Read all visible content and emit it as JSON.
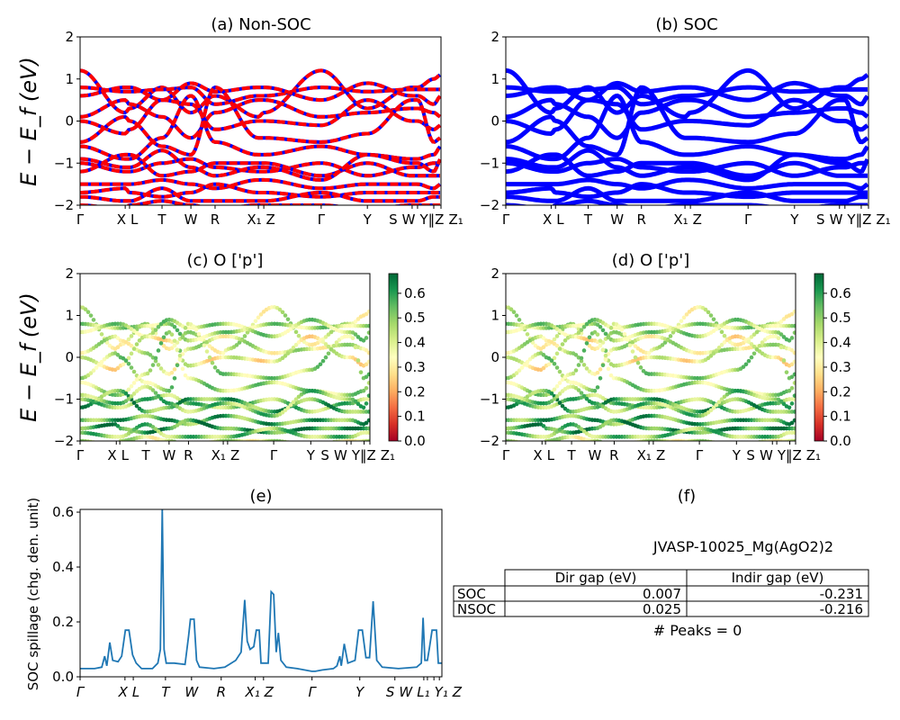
{
  "chart_data": [
    {
      "type": "line",
      "title": "(a) Non-SOC",
      "ylabel": "E − E_f (eV)",
      "ylim": [
        -2,
        2
      ],
      "yticks": [
        "−2",
        "−1",
        "0",
        "1",
        "2"
      ],
      "xtick_labels": [
        "Γ",
        "X",
        "L",
        "T",
        "W",
        "R",
        "X₁",
        "Z",
        "Γ",
        "Y",
        "S",
        "W",
        "Y‖Z",
        "Z₁"
      ],
      "colors": {
        "line_under": "#0000ff",
        "line_over": "#ff0000"
      },
      "style": "red dashed over blue"
    },
    {
      "type": "line",
      "title": "(b) SOC",
      "ylim": [
        -2,
        2
      ],
      "yticks": [
        "−2",
        "−1",
        "0",
        "1",
        "2"
      ],
      "xtick_labels": [
        "Γ",
        "X",
        "L",
        "T",
        "W",
        "R",
        "X₁",
        "Z",
        "Γ",
        "Y",
        "S",
        "W",
        "Y‖Z",
        "Z₁"
      ],
      "colors": {
        "line": "#0000ff"
      }
    },
    {
      "type": "scatter",
      "title": "(c)  O ['p']",
      "ylabel": "E − E_f (eV)",
      "ylim": [
        -2,
        2
      ],
      "yticks": [
        "−2",
        "−1",
        "0",
        "1",
        "2"
      ],
      "xtick_labels": [
        "Γ",
        "X",
        "L",
        "T",
        "W",
        "R",
        "X₁",
        "Z",
        "Γ",
        "Y",
        "S",
        "W",
        "Y‖Z",
        "Z₁"
      ],
      "colorbar": {
        "colormap": "RdYlGn",
        "range": [
          0,
          0.68
        ],
        "ticks": [
          "0.0",
          "0.1",
          "0.2",
          "0.3",
          "0.4",
          "0.5",
          "0.6"
        ]
      }
    },
    {
      "type": "scatter",
      "title": "(d) O ['p']",
      "ylim": [
        -2,
        2
      ],
      "yticks": [
        "−2",
        "−1",
        "0",
        "1",
        "2"
      ],
      "xtick_labels": [
        "Γ",
        "X",
        "L",
        "T",
        "W",
        "R",
        "X₁",
        "Z",
        "Γ",
        "Y",
        "S",
        "W",
        "Y‖Z",
        "Z₁"
      ],
      "colorbar": {
        "colormap": "RdYlGn",
        "range": [
          0,
          0.68
        ],
        "ticks": [
          "0.0",
          "0.1",
          "0.2",
          "0.3",
          "0.4",
          "0.5",
          "0.6"
        ]
      }
    },
    {
      "type": "line",
      "title": "(e)",
      "ylabel": "SOC spillage (chg. den. unit)",
      "ylim": [
        0,
        0.61
      ],
      "yticks": [
        "0.0",
        "0.2",
        "0.4",
        "0.6"
      ],
      "xtick_labels": [
        "Γ",
        "X",
        "L",
        "T",
        "W",
        "R",
        "X₁",
        "Z",
        "Γ",
        "Y",
        "S",
        "W",
        "L₁",
        "Y₁",
        "Z"
      ],
      "xticks": [
        0,
        0.124,
        0.147,
        0.236,
        0.308,
        0.39,
        0.484,
        0.507,
        0.641,
        0.773,
        0.87,
        0.95,
        0.96,
        0.978,
        0.993
      ],
      "color": "#1f77b4",
      "points": [
        [
          0,
          0.03
        ],
        [
          0.04,
          0.03
        ],
        [
          0.06,
          0.035
        ],
        [
          0.068,
          0.075
        ],
        [
          0.074,
          0.04
        ],
        [
          0.082,
          0.125
        ],
        [
          0.09,
          0.06
        ],
        [
          0.105,
          0.055
        ],
        [
          0.115,
          0.075
        ],
        [
          0.125,
          0.17
        ],
        [
          0.135,
          0.17
        ],
        [
          0.145,
          0.08
        ],
        [
          0.155,
          0.05
        ],
        [
          0.17,
          0.03
        ],
        [
          0.2,
          0.03
        ],
        [
          0.215,
          0.05
        ],
        [
          0.222,
          0.1
        ],
        [
          0.227,
          0.61
        ],
        [
          0.232,
          0.1
        ],
        [
          0.238,
          0.05
        ],
        [
          0.26,
          0.05
        ],
        [
          0.29,
          0.045
        ],
        [
          0.3,
          0.15
        ],
        [
          0.305,
          0.21
        ],
        [
          0.315,
          0.21
        ],
        [
          0.322,
          0.06
        ],
        [
          0.33,
          0.035
        ],
        [
          0.37,
          0.03
        ],
        [
          0.4,
          0.035
        ],
        [
          0.43,
          0.06
        ],
        [
          0.445,
          0.09
        ],
        [
          0.455,
          0.28
        ],
        [
          0.462,
          0.13
        ],
        [
          0.47,
          0.1
        ],
        [
          0.48,
          0.11
        ],
        [
          0.487,
          0.17
        ],
        [
          0.495,
          0.17
        ],
        [
          0.5,
          0.05
        ],
        [
          0.52,
          0.05
        ],
        [
          0.528,
          0.31
        ],
        [
          0.535,
          0.3
        ],
        [
          0.542,
          0.09
        ],
        [
          0.548,
          0.16
        ],
        [
          0.555,
          0.06
        ],
        [
          0.57,
          0.035
        ],
        [
          0.6,
          0.03
        ],
        [
          0.64,
          0.02
        ],
        [
          0.65,
          0.02
        ],
        [
          0.67,
          0.025
        ],
        [
          0.7,
          0.03
        ],
        [
          0.71,
          0.04
        ],
        [
          0.718,
          0.075
        ],
        [
          0.722,
          0.04
        ],
        [
          0.73,
          0.12
        ],
        [
          0.74,
          0.05
        ],
        [
          0.76,
          0.06
        ],
        [
          0.77,
          0.17
        ],
        [
          0.78,
          0.17
        ],
        [
          0.79,
          0.07
        ],
        [
          0.8,
          0.07
        ],
        [
          0.81,
          0.275
        ],
        [
          0.82,
          0.06
        ],
        [
          0.835,
          0.035
        ],
        [
          0.88,
          0.03
        ],
        [
          0.93,
          0.035
        ],
        [
          0.943,
          0.05
        ],
        [
          0.948,
          0.215
        ],
        [
          0.953,
          0.06
        ],
        [
          0.96,
          0.06
        ],
        [
          0.965,
          0.1
        ],
        [
          0.973,
          0.17
        ],
        [
          0.985,
          0.17
        ],
        [
          0.99,
          0.05
        ],
        [
          1,
          0.05
        ]
      ]
    }
  ],
  "bands": {
    "node_positions": [
      0,
      0.125,
      0.137,
      0.227,
      0.307,
      0.374,
      0.494,
      0.509,
      0.668,
      0.796,
      0.92,
      0.935,
      0.98,
      1
    ],
    "energies": [
      [
        1.2,
        0.2,
        0.3,
        0.8,
        0.2,
        0.6,
        0.1,
        0.2,
        1.2,
        0.3,
        0.8,
        0.8,
        1.0,
        1.1
      ],
      [
        0.8,
        0.7,
        0.7,
        0.75,
        0.8,
        0.4,
        0.6,
        0.6,
        0.8,
        0.7,
        0.75,
        0.75,
        0.75,
        0.75
      ],
      [
        0.6,
        0.8,
        0.8,
        0.5,
        0.9,
        0.7,
        0.8,
        0.8,
        0.5,
        0.9,
        0.6,
        0.6,
        0.4,
        0.6
      ],
      [
        0.1,
        0.5,
        0.4,
        0.1,
        -0.4,
        0.2,
        0.5,
        0.5,
        0.1,
        0.2,
        0.3,
        0.3,
        0.2,
        0.1
      ],
      [
        0,
        -0.3,
        -0.2,
        0.5,
        0.4,
        -0.2,
        0,
        0,
        -0.1,
        0.5,
        0,
        0,
        -0.2,
        -0.1
      ],
      [
        -0.5,
        0.1,
        0,
        -0.6,
        -0.8,
        0.8,
        -0.4,
        -0.4,
        -0.5,
        -0.3,
        0.5,
        0.5,
        -0.5,
        -0.4
      ],
      [
        -0.6,
        -0.9,
        -0.9,
        -0.4,
        0.6,
        -0.5,
        -0.8,
        -0.8,
        -0.6,
        -0.8,
        -0.9,
        -0.9,
        -0.8,
        -0.6
      ],
      [
        -1.0,
        -1.2,
        -1.2,
        -1.0,
        -0.9,
        -1.1,
        -1.2,
        -1.2,
        -1.0,
        -1.3,
        -1.1,
        -1.1,
        -1.0,
        -1.0
      ],
      [
        -1.2,
        -0.8,
        -0.8,
        -1.3,
        -1.2,
        -1.0,
        -1.0,
        -1.0,
        -1.3,
        -1.0,
        -1.3,
        -1.3,
        -1.3,
        -1.3
      ],
      [
        -1.5,
        -1.5,
        -1.5,
        -1.4,
        -1.5,
        -1.6,
        -1.4,
        -1.4,
        -1.6,
        -1.5,
        -1.5,
        -1.5,
        -1.6,
        -1.5
      ],
      [
        -1.7,
        -1.6,
        -1.7,
        -1.8,
        -1.7,
        -1.5,
        -1.7,
        -1.7,
        -1.8,
        -1.7,
        -1.7,
        -1.7,
        -1.7,
        -1.7
      ],
      [
        -1.8,
        -1.9,
        -1.9,
        -1.6,
        -1.9,
        -1.9,
        -1.9,
        -1.9,
        -1.7,
        -1.9,
        -1.9,
        -1.9,
        -1.8,
        -1.8
      ],
      [
        -2.0,
        -2.1,
        -2.0,
        -1.9,
        -2.0,
        -2.1,
        -2.0,
        -2.0,
        -2.0,
        -2.1,
        -2.0,
        -2.0,
        -2.0,
        -2.0
      ],
      [
        -0.9,
        -1.1,
        -1.1,
        -0.7,
        -1.1,
        -1.3,
        -1.1,
        -1.1,
        -1.4,
        -0.8,
        -1.0,
        -1.0,
        -1.2,
        -0.9
      ]
    ],
    "o_p_weights": [
      0.4,
      0.45,
      0.45,
      0.4,
      0.35,
      0.45,
      0.45,
      0.5,
      0.55,
      0.55,
      0.6,
      0.5,
      0.4,
      0.5
    ]
  },
  "panel_f": {
    "title": "(f)",
    "material": "JVASP-10025_Mg(AgO2)2",
    "table": {
      "columns": [
        "Dir gap (eV)",
        "Indir gap (eV)"
      ],
      "rows": [
        {
          "label": "SOC",
          "values": [
            "0.007",
            "-0.231"
          ]
        },
        {
          "label": "NSOC",
          "values": [
            "0.025",
            "-0.216"
          ]
        }
      ]
    },
    "peaks": "# Peaks = 0"
  }
}
